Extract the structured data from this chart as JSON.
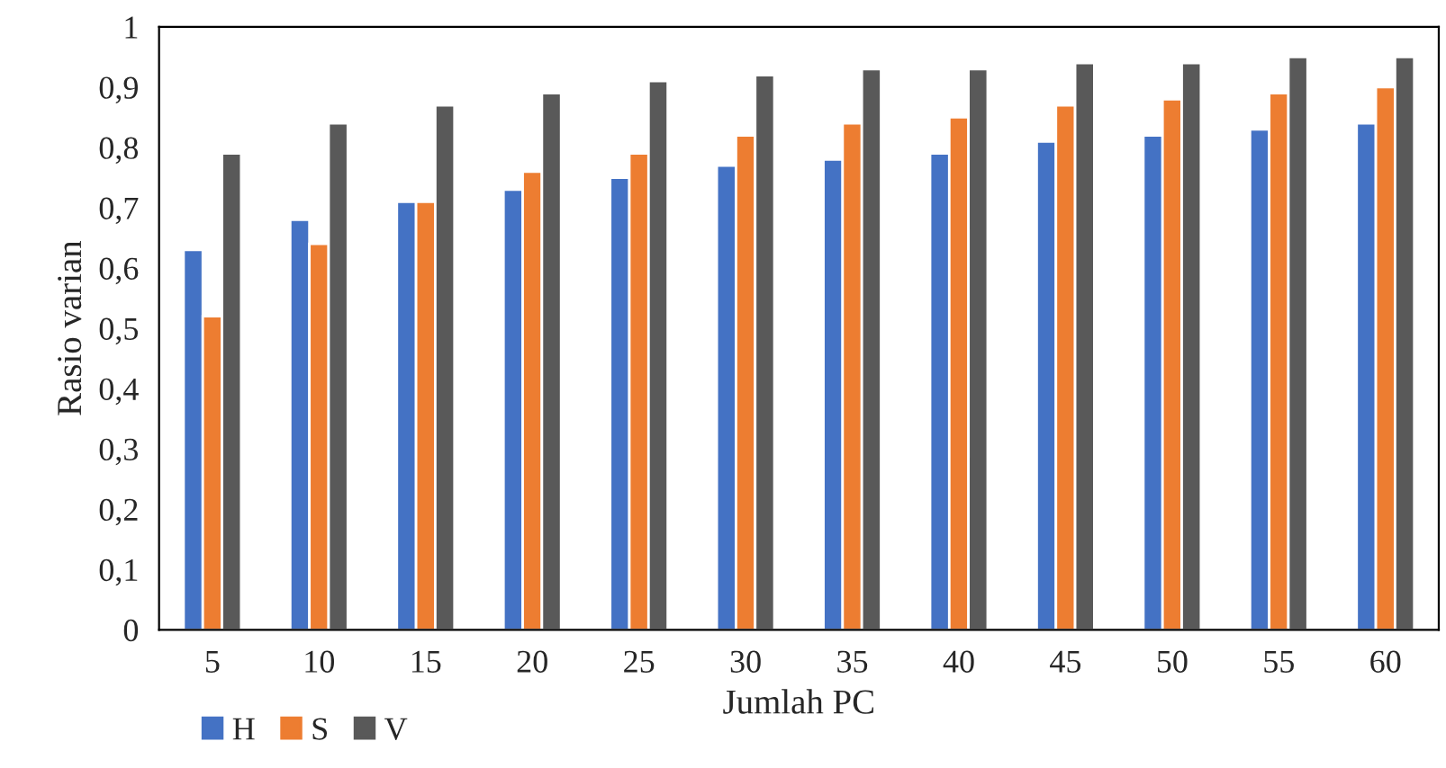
{
  "chart_data": {
    "type": "bar",
    "xlabel": "Jumlah PC",
    "ylabel": "Rasio varian",
    "categories": [
      "5",
      "10",
      "15",
      "20",
      "25",
      "30",
      "35",
      "40",
      "45",
      "50",
      "55",
      "60"
    ],
    "series": [
      {
        "name": "H",
        "color": "#4472c4",
        "values": [
          0.63,
          0.68,
          0.71,
          0.73,
          0.75,
          0.77,
          0.78,
          0.79,
          0.81,
          0.82,
          0.83,
          0.84
        ]
      },
      {
        "name": "S",
        "color": "#ed7d31",
        "values": [
          0.52,
          0.64,
          0.71,
          0.76,
          0.79,
          0.82,
          0.84,
          0.85,
          0.87,
          0.88,
          0.89,
          0.9
        ]
      },
      {
        "name": "V",
        "color": "#595959",
        "values": [
          0.79,
          0.84,
          0.87,
          0.89,
          0.91,
          0.92,
          0.93,
          0.93,
          0.94,
          0.94,
          0.95,
          0.95
        ]
      }
    ],
    "ylim": [
      0,
      1
    ],
    "yticks": [
      0,
      {
        "value": 0.1,
        "label": "0,1"
      },
      {
        "value": 0.2,
        "label": "0,2"
      },
      {
        "value": 0.3,
        "label": "0,3"
      },
      {
        "value": 0.4,
        "label": "0,4"
      },
      {
        "value": 0.5,
        "label": "0,5"
      },
      {
        "value": 0.6,
        "label": "0,6"
      },
      {
        "value": 0.7,
        "label": "0,7"
      },
      {
        "value": 0.8,
        "label": "0,8"
      },
      {
        "value": 0.9,
        "label": "0,9"
      },
      1
    ],
    "grid": false,
    "legend": "bottom left"
  }
}
